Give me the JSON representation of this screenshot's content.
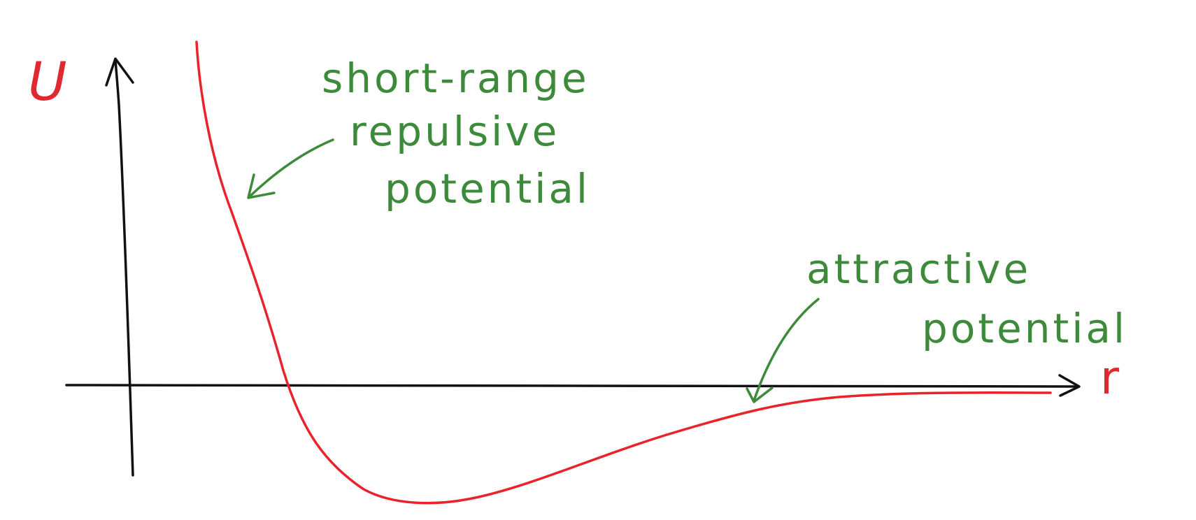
{
  "diagram": {
    "axes": {
      "y_label": "U",
      "x_label": "r"
    },
    "annotations": {
      "repulsive": [
        "short-range",
        "repulsive",
        "potential"
      ],
      "attractive": [
        "attractive",
        "potential"
      ]
    },
    "colors": {
      "curve": "#e8242a",
      "axis": "#111111",
      "axis_labels": "#e0282e",
      "annotations": "#3d8a3a"
    }
  }
}
